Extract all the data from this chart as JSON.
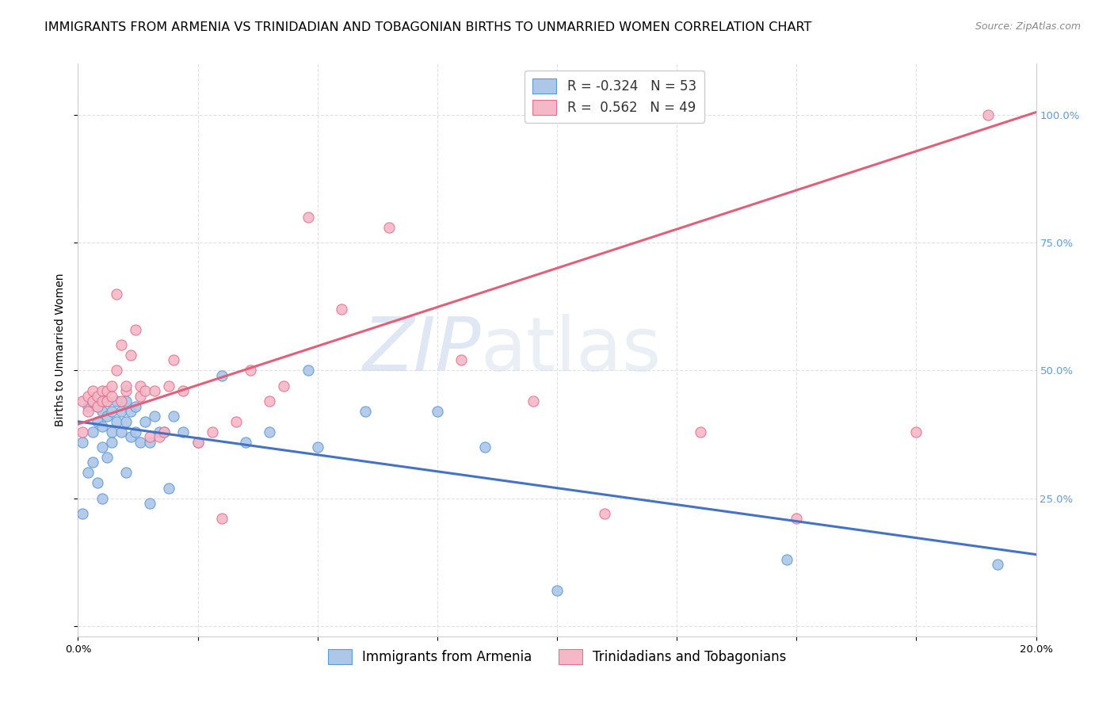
{
  "title": "IMMIGRANTS FROM ARMENIA VS TRINIDADIAN AND TOBAGONIAN BIRTHS TO UNMARRIED WOMEN CORRELATION CHART",
  "source": "Source: ZipAtlas.com",
  "ylabel": "Births to Unmarried Women",
  "right_yticks": [
    0.0,
    0.25,
    0.5,
    0.75,
    1.0
  ],
  "right_ytick_labels": [
    "",
    "25.0%",
    "50.0%",
    "75.0%",
    "100.0%"
  ],
  "legend_blue_label": "R = -0.324   N = 53",
  "legend_pink_label": "R =  0.562   N = 49",
  "legend_label_blue": "Immigrants from Armenia",
  "legend_label_pink": "Trinidadians and Tobagonians",
  "blue_face_color": "#aec6e8",
  "pink_face_color": "#f4b8c8",
  "blue_edge_color": "#5b9bd5",
  "pink_edge_color": "#e8708a",
  "blue_line_color": "#4472c4",
  "pink_line_color": "#e0607a",
  "xmin": 0.0,
  "xmax": 0.2,
  "ymin": -0.02,
  "ymax": 1.1,
  "blue_scatter_x": [
    0.001,
    0.001,
    0.002,
    0.002,
    0.003,
    0.003,
    0.003,
    0.004,
    0.004,
    0.004,
    0.005,
    0.005,
    0.005,
    0.005,
    0.006,
    0.006,
    0.006,
    0.007,
    0.007,
    0.007,
    0.008,
    0.008,
    0.009,
    0.009,
    0.01,
    0.01,
    0.01,
    0.011,
    0.011,
    0.012,
    0.012,
    0.013,
    0.014,
    0.015,
    0.015,
    0.016,
    0.017,
    0.018,
    0.019,
    0.02,
    0.022,
    0.025,
    0.03,
    0.035,
    0.04,
    0.048,
    0.05,
    0.06,
    0.075,
    0.085,
    0.1,
    0.148,
    0.192
  ],
  "blue_scatter_y": [
    0.36,
    0.22,
    0.43,
    0.3,
    0.44,
    0.38,
    0.32,
    0.43,
    0.4,
    0.28,
    0.42,
    0.39,
    0.35,
    0.25,
    0.44,
    0.41,
    0.33,
    0.42,
    0.38,
    0.36,
    0.44,
    0.4,
    0.42,
    0.38,
    0.44,
    0.4,
    0.3,
    0.42,
    0.37,
    0.43,
    0.38,
    0.36,
    0.4,
    0.36,
    0.24,
    0.41,
    0.38,
    0.38,
    0.27,
    0.41,
    0.38,
    0.36,
    0.49,
    0.36,
    0.38,
    0.5,
    0.35,
    0.42,
    0.42,
    0.35,
    0.07,
    0.13,
    0.12
  ],
  "pink_scatter_x": [
    0.001,
    0.001,
    0.002,
    0.002,
    0.003,
    0.003,
    0.004,
    0.004,
    0.005,
    0.005,
    0.006,
    0.006,
    0.007,
    0.007,
    0.008,
    0.008,
    0.009,
    0.009,
    0.01,
    0.01,
    0.011,
    0.012,
    0.013,
    0.013,
    0.014,
    0.015,
    0.016,
    0.017,
    0.018,
    0.019,
    0.02,
    0.022,
    0.025,
    0.028,
    0.03,
    0.033,
    0.036,
    0.04,
    0.043,
    0.048,
    0.055,
    0.065,
    0.08,
    0.095,
    0.11,
    0.13,
    0.15,
    0.175,
    0.19
  ],
  "pink_scatter_y": [
    0.44,
    0.38,
    0.45,
    0.42,
    0.46,
    0.44,
    0.45,
    0.43,
    0.46,
    0.44,
    0.46,
    0.44,
    0.47,
    0.45,
    0.65,
    0.5,
    0.55,
    0.44,
    0.46,
    0.47,
    0.53,
    0.58,
    0.45,
    0.47,
    0.46,
    0.37,
    0.46,
    0.37,
    0.38,
    0.47,
    0.52,
    0.46,
    0.36,
    0.38,
    0.21,
    0.4,
    0.5,
    0.44,
    0.47,
    0.8,
    0.62,
    0.78,
    0.52,
    0.44,
    0.22,
    0.38,
    0.21,
    0.38,
    1.0
  ],
  "blue_trendline_x": [
    0.0,
    0.2
  ],
  "blue_trendline_y": [
    0.4,
    0.14
  ],
  "pink_trendline_x": [
    0.0,
    0.2
  ],
  "pink_trendline_y": [
    0.395,
    1.005
  ],
  "background_color": "#ffffff",
  "grid_color": "#dddddd",
  "title_fontsize": 11.5,
  "axis_label_fontsize": 10,
  "tick_fontsize": 9.5,
  "legend_fontsize": 12,
  "marker_size": 90
}
